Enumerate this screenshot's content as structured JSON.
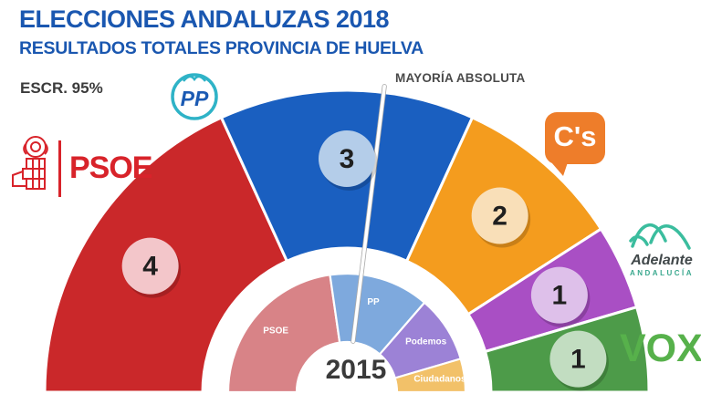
{
  "header": {
    "title": "ELECCIONES ANDALUZAS 2018",
    "subtitle": "RESULTADOS TOTALES PROVINCIA DE HUELVA",
    "scrutiny": "ESCR. 95%"
  },
  "annotations": {
    "majority_label": "MAYORÍA ABSOLUTA",
    "inner_year_label": "2015"
  },
  "logos": {
    "pp": "PP",
    "psoe": "PSOE",
    "cs": "C's",
    "adelante_line1": "Adelante",
    "adelante_line2": "ANDALUCÍA",
    "vox": "VOX"
  },
  "colors": {
    "header_blue": "#1a57b0",
    "text_dark": "#3b3b3b",
    "psoe_red": "#d8232a",
    "cs_orange": "#ee7d2a",
    "adelante_teal": "#3bbd9e",
    "vox_green": "#57b14b",
    "pp_circle_teal": "#2fb3c7",
    "badge_number": "#1f1f1f"
  },
  "chart_data": {
    "type": "pie",
    "subtype": "half-donut parliament seat chart, outer ring = 2018 result, inner ring = 2015 result",
    "title": "ELECCIONES ANDALUZAS 2018 — RESULTADOS TOTALES PROVINCIA DE HUELVA",
    "total_seats": 11,
    "majority_label": "MAYORÍA ABSOLUTA",
    "majority_threshold_seats": 6,
    "rings": [
      {
        "year": "2018",
        "position": "outer",
        "show_seat_badges": true,
        "parties": [
          {
            "name": "PSOE",
            "seats": 4,
            "color": "#ca282a",
            "badge_color": "#f3c6ca"
          },
          {
            "name": "PP",
            "seats": 3,
            "color": "#1a5fc0",
            "badge_color": "#b4cde9"
          },
          {
            "name": "C's",
            "seats": 2,
            "color": "#f49c1e",
            "badge_color": "#f9dfb8"
          },
          {
            "name": "Adelante Andalucía",
            "seats": 1,
            "color": "#a94fc4",
            "badge_color": "#dec0ea"
          },
          {
            "name": "VOX",
            "seats": 1,
            "color": "#4d9b49",
            "badge_color": "#c2ddc1"
          }
        ]
      },
      {
        "year": "2015",
        "position": "inner",
        "show_seat_badges": false,
        "parties": [
          {
            "name": "PSOE",
            "seats": 5,
            "color": "#d88387"
          },
          {
            "name": "PP",
            "seats": 3,
            "color": "#7ea9dd"
          },
          {
            "name": "Podemos",
            "seats": 2,
            "color": "#9c82d6"
          },
          {
            "name": "Ciudadanos",
            "seats": 1,
            "color": "#f2c169"
          }
        ]
      }
    ]
  }
}
